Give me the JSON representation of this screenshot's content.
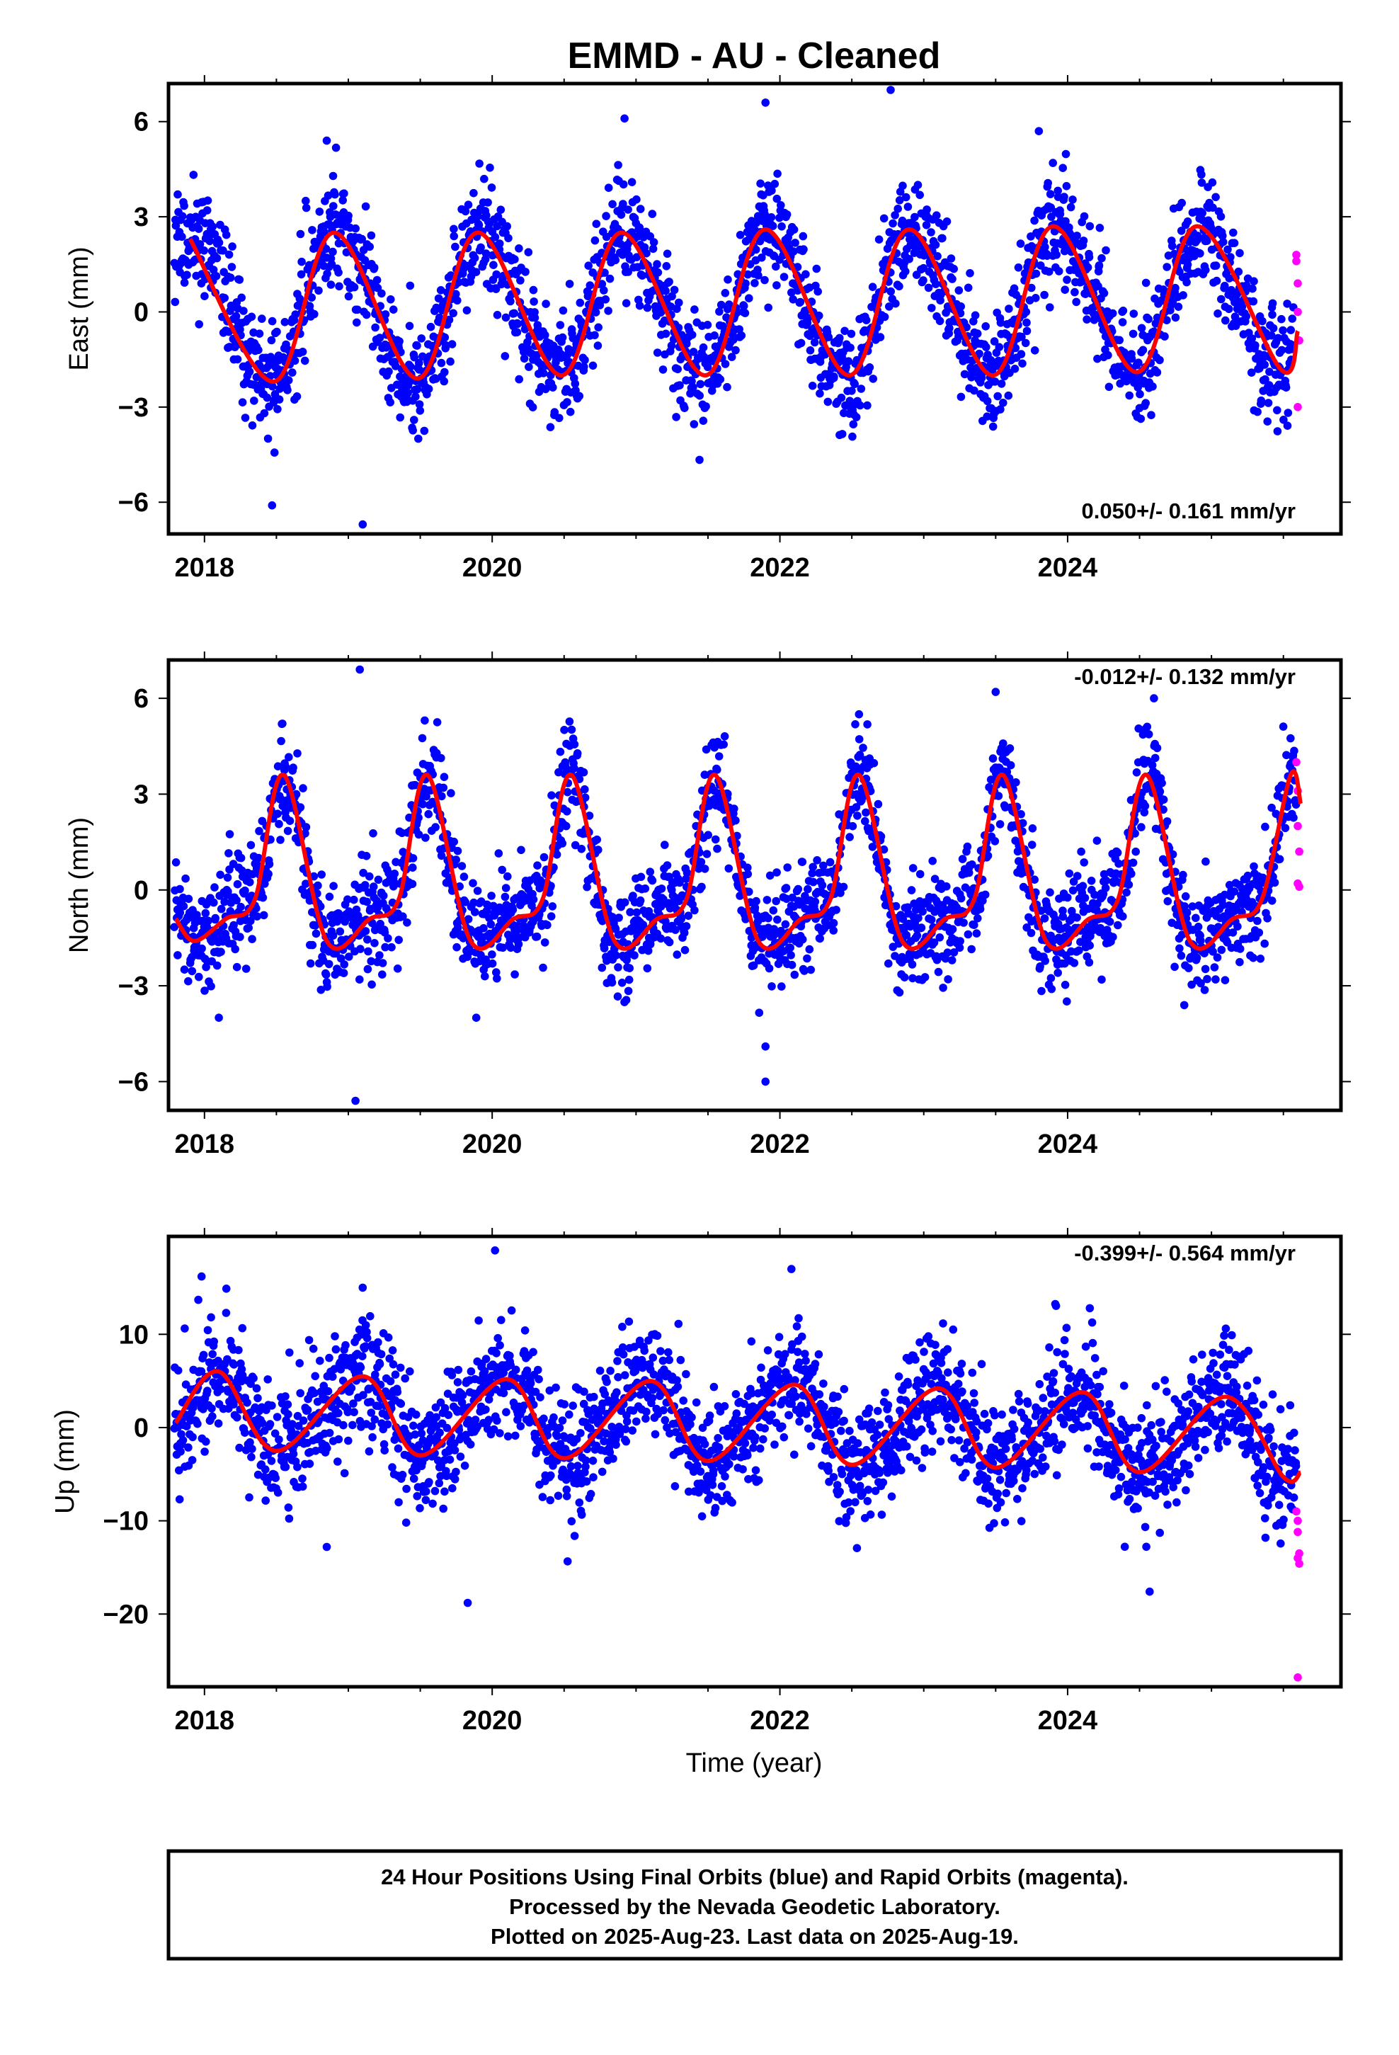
{
  "chart_data": {
    "title": "EMMD  - AU - Cleaned",
    "type": "scatter",
    "xlabel": "Time (year)",
    "xlim": [
      2017.75,
      2025.9
    ],
    "x_ticks": [
      "2018",
      "2020",
      "2022",
      "2024"
    ],
    "colors": {
      "final": "#0000ff",
      "rapid": "#ff00ff",
      "model": "#ff0000"
    },
    "panels": [
      {
        "name": "east",
        "ylabel": "East (mm)",
        "ylim": [
          -7,
          7.2
        ],
        "y_ticks": [
          "6",
          "3",
          "0",
          "−3",
          "−6"
        ],
        "y_tick_values": [
          6,
          3,
          0,
          -3,
          -6
        ],
        "rate": "0.050+/- 0.161 mm/yr",
        "rate_position": "bottom-right",
        "model": {
          "x": [
            2017.9,
            2018.48,
            2018.9,
            2019.48,
            2019.9,
            2020.48,
            2020.9,
            2021.48,
            2021.9,
            2022.48,
            2022.9,
            2023.48,
            2023.9,
            2024.48,
            2024.9,
            2025.48,
            2025.6
          ],
          "y": [
            2.3,
            -2.2,
            2.5,
            -2.1,
            2.5,
            -2.0,
            2.5,
            -2.0,
            2.6,
            -2.0,
            2.6,
            -2.0,
            2.7,
            -1.9,
            2.7,
            -1.8,
            -0.6
          ]
        },
        "scatter": {
          "seed": 11,
          "noise": 0.9,
          "sigma_step": 0.06,
          "points": 2350,
          "outliers": [
            [
              2018.47,
              -6.1
            ],
            [
              2019.1,
              -6.7
            ],
            [
              2020.92,
              6.1
            ],
            [
              2021.9,
              6.6
            ],
            [
              2022.77,
              7.0
            ],
            [
              2018.85,
              5.4
            ],
            [
              2023.8,
              5.7
            ]
          ]
        },
        "rapid": {
          "x": [
            2025.59,
            2025.59,
            2025.6,
            2025.6,
            2025.61,
            2025.6
          ],
          "y": [
            1.8,
            1.6,
            0.9,
            0.0,
            -0.9,
            -3.0
          ]
        }
      },
      {
        "name": "north",
        "ylabel": "North (mm)",
        "ylim": [
          -6.9,
          7.2
        ],
        "y_ticks": [
          "6",
          "3",
          "0",
          "−3",
          "−6"
        ],
        "y_tick_values": [
          6,
          3,
          0,
          -3,
          -6
        ],
        "rate": "-0.012+/- 0.132 mm/yr",
        "rate_position": "top-right",
        "model": {
          "x": [
            2017.8,
            2017.93,
            2018.15,
            2018.35,
            2018.55,
            2018.85,
            2019.15,
            2019.35,
            2019.55,
            2019.85,
            2020.15,
            2020.35,
            2020.55,
            2020.85,
            2021.15,
            2021.35,
            2021.55,
            2021.85,
            2022.15,
            2022.35,
            2022.55,
            2022.85,
            2023.15,
            2023.35,
            2023.55,
            2023.85,
            2024.15,
            2024.35,
            2024.55,
            2024.85,
            2025.15,
            2025.35,
            2025.55,
            2025.62
          ],
          "y": [
            -0.9,
            -1.6,
            -0.9,
            -0.3,
            3.6,
            -1.6,
            -0.9,
            -0.3,
            3.6,
            -1.6,
            -0.9,
            -0.3,
            3.6,
            -1.6,
            -0.9,
            -0.3,
            3.6,
            -1.6,
            -0.9,
            -0.3,
            3.6,
            -1.6,
            -0.9,
            -0.3,
            3.6,
            -1.6,
            -0.9,
            -0.3,
            3.6,
            -1.6,
            -0.9,
            -0.3,
            3.6,
            2.7
          ]
        },
        "scatter": {
          "seed": 23,
          "noise": 0.8,
          "sigma_step": 0.05,
          "points": 2350,
          "outliers": [
            [
              2019.05,
              -6.6
            ],
            [
              2019.08,
              6.9
            ],
            [
              2021.9,
              -6.0
            ],
            [
              2021.9,
              -4.9
            ],
            [
              2022.55,
              5.5
            ],
            [
              2023.5,
              6.2
            ],
            [
              2024.6,
              6.0
            ],
            [
              2018.1,
              -4.0
            ]
          ]
        },
        "rapid": {
          "x": [
            2025.59,
            2025.6,
            2025.6,
            2025.61,
            2025.6,
            2025.61
          ],
          "y": [
            4.0,
            3.1,
            2.0,
            1.2,
            0.2,
            0.1
          ]
        }
      },
      {
        "name": "up",
        "ylabel": "Up (mm)",
        "ylim": [
          -27.8,
          20.5
        ],
        "y_ticks": [
          "10",
          "0",
          "−10",
          "−20"
        ],
        "y_tick_values": [
          10,
          0,
          -10,
          -20
        ],
        "rate": "-0.399+/- 0.564 mm/yr",
        "rate_position": "top-right",
        "model": {
          "x": [
            2017.8,
            2018.1,
            2018.5,
            2019.1,
            2019.5,
            2020.1,
            2020.5,
            2021.1,
            2021.5,
            2022.1,
            2022.5,
            2023.1,
            2023.5,
            2024.1,
            2024.5,
            2025.1,
            2025.5,
            2025.62
          ],
          "y": [
            0.5,
            6.0,
            -2.5,
            5.5,
            -3.0,
            5.2,
            -3.3,
            5.0,
            -3.6,
            4.6,
            -4.0,
            4.2,
            -4.3,
            3.8,
            -4.8,
            3.3,
            -5.3,
            -4.8
          ]
        },
        "scatter": {
          "seed": 37,
          "noise": 3.3,
          "sigma_step": 0.25,
          "points": 2350,
          "outliers": [
            [
              2017.98,
              16.2
            ],
            [
              2019.83,
              -18.8
            ],
            [
              2020.02,
              19.0
            ],
            [
              2022.08,
              17.0
            ],
            [
              2024.57,
              -17.6
            ],
            [
              2018.85,
              -12.8
            ],
            [
              2019.1,
              15.0
            ]
          ]
        },
        "rapid": {
          "x": [
            2025.59,
            2025.6,
            2025.6,
            2025.61,
            2025.6,
            2025.61,
            2025.6
          ],
          "y": [
            -9.0,
            -10.0,
            -11.2,
            -13.5,
            -14.0,
            -14.6,
            -26.8
          ]
        }
      }
    ]
  },
  "footer": {
    "line1": "24 Hour Positions Using Final Orbits (blue) and Rapid Orbits (magenta).",
    "line2": "Processed by the Nevada Geodetic Laboratory.",
    "line3": "Plotted on 2025-Aug-23. Last data on 2025-Aug-19."
  }
}
